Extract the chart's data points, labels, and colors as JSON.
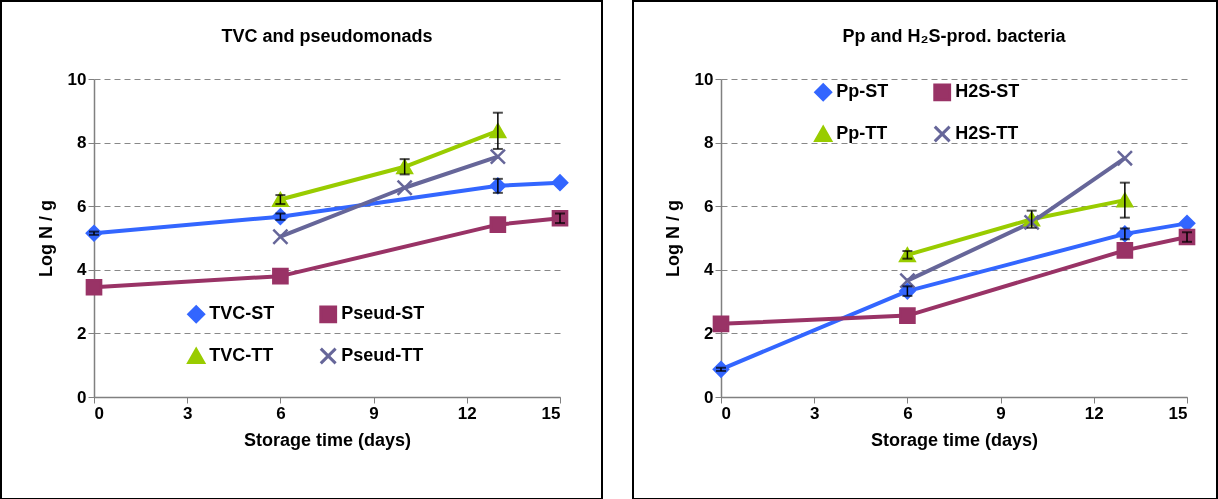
{
  "chart_data": [
    {
      "type": "line",
      "title": "TVC and pseudomonads",
      "xlabel": "Storage time (days)",
      "ylabel": "Log N / g",
      "xlim": [
        0,
        15
      ],
      "xticks": [
        0,
        3,
        6,
        9,
        12,
        15
      ],
      "ylim": [
        0,
        10
      ],
      "yticks": [
        0,
        2,
        4,
        6,
        8,
        10
      ],
      "grid": "y",
      "legend": "bottom",
      "series": [
        {
          "name": "TVC-ST",
          "color": "#3366ff",
          "marker": "diamond",
          "x": [
            0,
            6,
            13,
            15
          ],
          "values": [
            5.15,
            5.67,
            6.64,
            6.74
          ],
          "errors": [
            0.05,
            0.1,
            0.22,
            null
          ]
        },
        {
          "name": "Pseud-ST",
          "color": "#993366",
          "marker": "square",
          "x": [
            0,
            6,
            13,
            15
          ],
          "values": [
            3.45,
            3.8,
            5.42,
            5.62
          ],
          "errors": [
            null,
            null,
            null,
            0.15
          ]
        },
        {
          "name": "TVC-TT",
          "color": "#99cc00",
          "marker": "triangle",
          "x": [
            6,
            10,
            13
          ],
          "values": [
            6.21,
            7.24,
            8.37
          ],
          "errors": [
            0.14,
            0.24,
            0.57
          ]
        },
        {
          "name": "Pseud-TT",
          "color": "#666699",
          "marker": "cross",
          "x": [
            6,
            10,
            13
          ],
          "values": [
            5.04,
            6.58,
            7.56
          ]
        }
      ]
    },
    {
      "type": "line",
      "title": "Pp and H₂S-prod. bacteria",
      "xlabel": "Storage time (days)",
      "ylabel": "Log N / g",
      "xlim": [
        0,
        15
      ],
      "xticks": [
        0,
        3,
        6,
        9,
        12,
        15
      ],
      "ylim": [
        0,
        10
      ],
      "yticks": [
        0,
        2,
        4,
        6,
        8,
        10
      ],
      "grid": "y",
      "legend": "top",
      "series": [
        {
          "name": "Pp-ST",
          "color": "#3366ff",
          "marker": "diamond",
          "x": [
            0,
            6,
            13,
            15
          ],
          "values": [
            0.87,
            3.33,
            5.13,
            5.46
          ],
          "errors": [
            0.05,
            0.15,
            0.17,
            null
          ]
        },
        {
          "name": "H2S-ST",
          "color": "#993366",
          "marker": "square",
          "x": [
            0,
            6,
            13,
            15
          ],
          "values": [
            2.3,
            2.56,
            4.61,
            5.03
          ],
          "errors": [
            null,
            null,
            null,
            0.15
          ]
        },
        {
          "name": "Pp-TT",
          "color": "#99cc00",
          "marker": "triangle",
          "x": [
            6,
            10,
            13
          ],
          "values": [
            4.47,
            5.59,
            6.19
          ],
          "errors": [
            0.12,
            0.27,
            0.55
          ]
        },
        {
          "name": "H2S-TT",
          "color": "#666699",
          "marker": "cross",
          "x": [
            6,
            10,
            13
          ],
          "values": [
            3.66,
            5.49,
            7.51
          ]
        }
      ]
    }
  ]
}
